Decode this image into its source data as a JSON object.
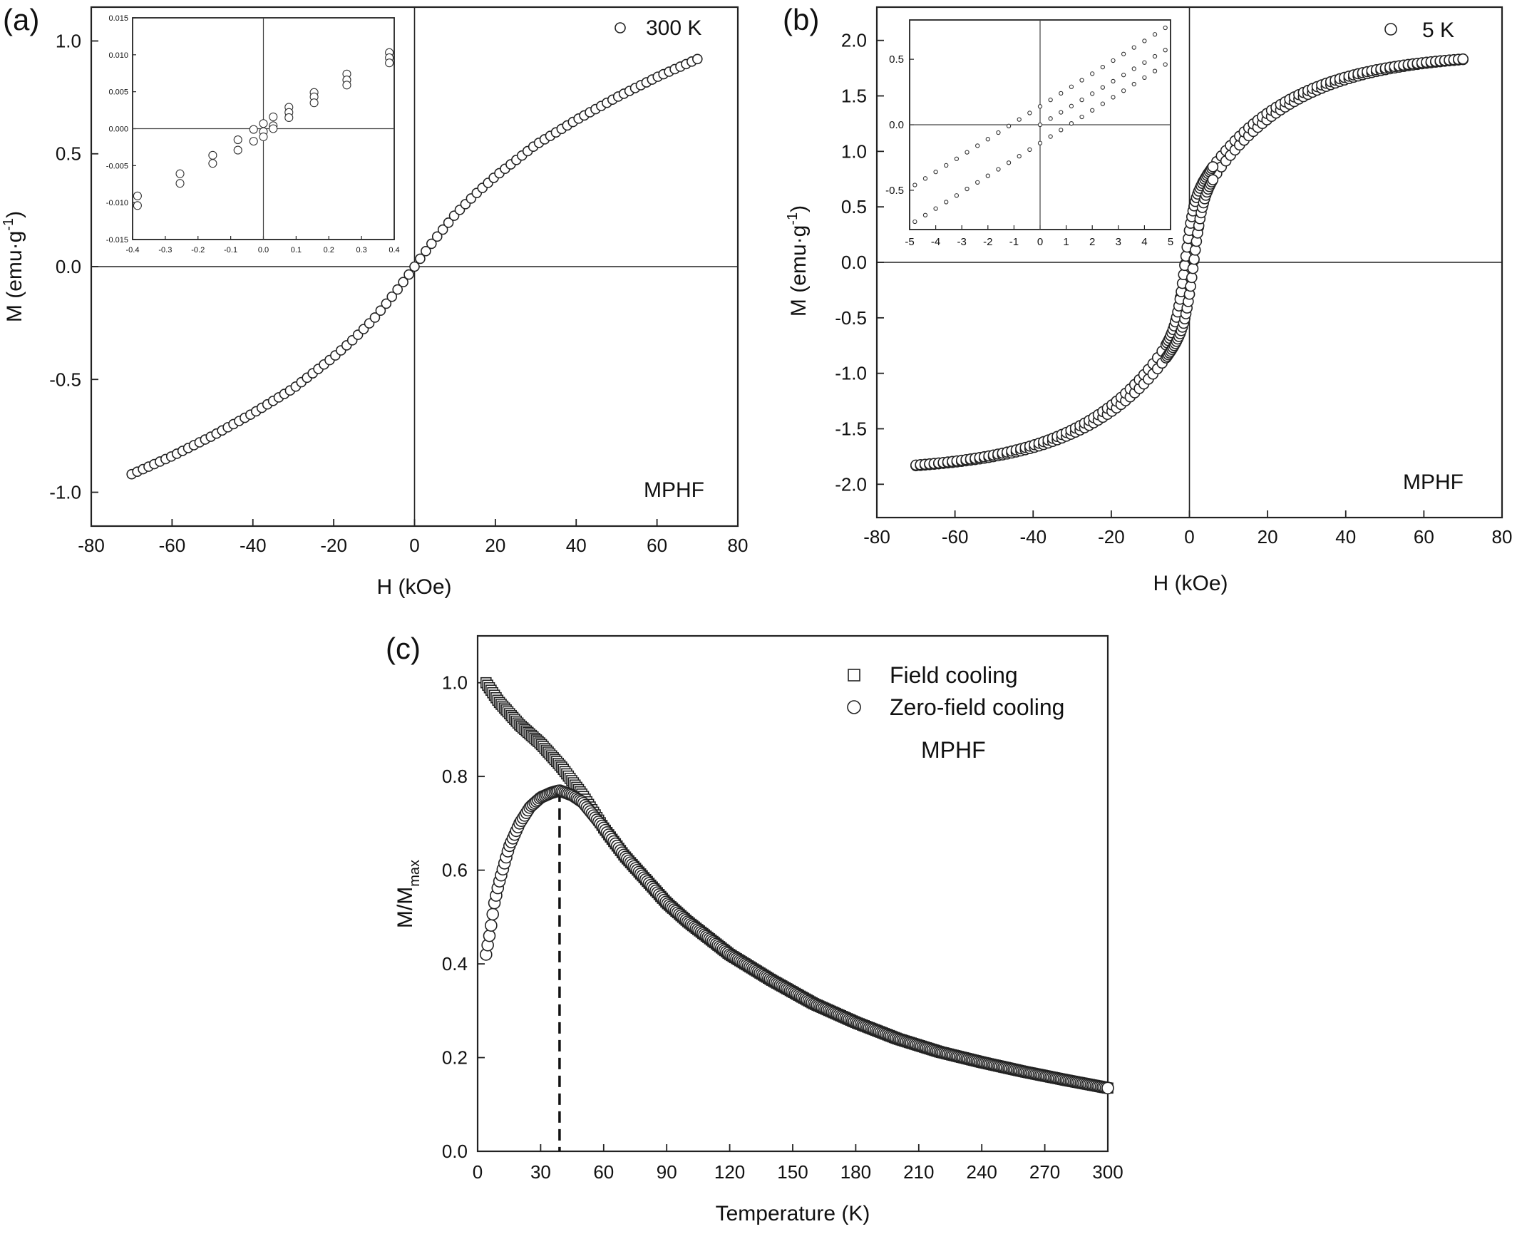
{
  "chart_data": [
    {
      "panel": "(a)",
      "type": "scatter",
      "xlabel": "H (kOe)",
      "ylabel": "M (emu·g",
      "ylabel_sup": "-1",
      "ylabel_end": ")",
      "xlim": [
        -80,
        80
      ],
      "ylim": [
        -1.15,
        1.15
      ],
      "xticks": [
        -80,
        -60,
        -40,
        -20,
        0,
        20,
        40,
        60,
        80
      ],
      "yticks": [
        -1.0,
        -0.5,
        0.0,
        0.5,
        1.0
      ],
      "legend": {
        "placement": "top-right",
        "entries": [
          {
            "marker": "circle",
            "label": "300 K"
          }
        ]
      },
      "annotation": "MPHF",
      "series": [
        {
          "name": "300 K",
          "points": [
            [
              -70,
              -0.92
            ],
            [
              -60,
              -0.84
            ],
            [
              -50,
              -0.75
            ],
            [
              -40,
              -0.65
            ],
            [
              -30,
              -0.54
            ],
            [
              -20,
              -0.4
            ],
            [
              -15,
              -0.32
            ],
            [
              -10,
              -0.23
            ],
            [
              -5,
              -0.12
            ],
            [
              -2,
              -0.05
            ],
            [
              0,
              0.0
            ],
            [
              2,
              0.05
            ],
            [
              5,
              0.12
            ],
            [
              10,
              0.23
            ],
            [
              15,
              0.32
            ],
            [
              20,
              0.4
            ],
            [
              30,
              0.54
            ],
            [
              40,
              0.65
            ],
            [
              50,
              0.75
            ],
            [
              60,
              0.84
            ],
            [
              70,
              0.92
            ]
          ]
        }
      ],
      "inset": {
        "xlim": [
          -0.4,
          0.4
        ],
        "ylim": [
          -0.015,
          0.015
        ],
        "xticks": [
          -0.4,
          -0.3,
          -0.2,
          -0.1,
          0.0,
          0.1,
          0.2,
          0.3,
          0.4
        ],
        "yticks": [
          -0.015,
          -0.01,
          -0.005,
          0.0,
          0.005,
          0.01,
          0.015
        ],
        "points": [
          [
            -0.385,
            -0.0091
          ],
          [
            -0.385,
            -0.0104
          ],
          [
            -0.255,
            -0.0061
          ],
          [
            -0.255,
            -0.0074
          ],
          [
            -0.155,
            -0.0036
          ],
          [
            -0.155,
            -0.0047
          ],
          [
            -0.078,
            -0.0015
          ],
          [
            -0.078,
            -0.0029
          ],
          [
            -0.03,
            -0.0001
          ],
          [
            -0.03,
            -0.0017
          ],
          [
            0.0,
            0.0007
          ],
          [
            0.0,
            -0.0004
          ],
          [
            0.0,
            -0.0011
          ],
          [
            0.03,
            0.0016
          ],
          [
            0.03,
            0.0004
          ],
          [
            0.03,
            0.0
          ],
          [
            0.078,
            0.0029
          ],
          [
            0.078,
            0.0022
          ],
          [
            0.078,
            0.0015
          ],
          [
            0.155,
            0.0049
          ],
          [
            0.155,
            0.0043
          ],
          [
            0.155,
            0.0035
          ],
          [
            0.255,
            0.0074
          ],
          [
            0.255,
            0.0066
          ],
          [
            0.255,
            0.0059
          ],
          [
            0.385,
            0.0103
          ],
          [
            0.385,
            0.0096
          ],
          [
            0.385,
            0.0089
          ]
        ]
      }
    },
    {
      "panel": "(b)",
      "type": "scatter",
      "xlabel": "H (kOe)",
      "ylabel": "M (emu·g",
      "ylabel_sup": "-1",
      "ylabel_end": ")",
      "xlim": [
        -80,
        80
      ],
      "ylim": [
        -2.3,
        2.3
      ],
      "xticks": [
        -80,
        -60,
        -40,
        -20,
        0,
        20,
        40,
        60,
        80
      ],
      "yticks": [
        -2.0,
        -1.5,
        -1.0,
        -0.5,
        0.0,
        0.5,
        1.0,
        1.5,
        2.0
      ],
      "legend": {
        "placement": "top-right",
        "entries": [
          {
            "marker": "circle",
            "label": "5 K"
          }
        ]
      },
      "annotation": "MPHF",
      "loop": {
        "Ms": 1.83,
        "Hc": 1.1,
        "Mr": 0.14,
        "hmax": 70
      },
      "inset": {
        "xlim": [
          -5,
          5
        ],
        "ylim": [
          -0.8,
          0.8
        ],
        "xticks": [
          -5,
          -4,
          -3,
          -2,
          -1,
          0,
          1,
          2,
          3,
          4,
          5
        ],
        "yticks": [
          -0.5,
          0.0,
          0.5
        ],
        "slope": 0.125,
        "offset": 0.14
      }
    },
    {
      "panel": "(c)",
      "type": "scatter",
      "xlabel": "Temperature (K)",
      "ylabel": "M/M",
      "ylabel_sub": "max",
      "xlim": [
        0,
        300
      ],
      "ylim": [
        0,
        1.1
      ],
      "xticks": [
        0,
        30,
        60,
        90,
        120,
        150,
        180,
        210,
        240,
        270,
        300
      ],
      "yticks": [
        0.0,
        0.2,
        0.4,
        0.6,
        0.8,
        1.0
      ],
      "legend": {
        "placement": "top-right",
        "entries": [
          {
            "marker": "square",
            "label": "Field cooling"
          },
          {
            "marker": "circle",
            "label": "Zero-field cooling"
          }
        ]
      },
      "annotation": "MPHF",
      "blocking_temperature_marker": 39,
      "series": [
        {
          "name": "Field cooling",
          "points": [
            [
              4,
              1.0
            ],
            [
              10,
              0.96
            ],
            [
              20,
              0.91
            ],
            [
              30,
              0.87
            ],
            [
              40,
              0.82
            ],
            [
              50,
              0.76
            ],
            [
              60,
              0.69
            ],
            [
              70,
              0.63
            ],
            [
              80,
              0.58
            ],
            [
              90,
              0.53
            ],
            [
              100,
              0.49
            ],
            [
              120,
              0.42
            ],
            [
              140,
              0.365
            ],
            [
              160,
              0.315
            ],
            [
              180,
              0.275
            ],
            [
              200,
              0.24
            ],
            [
              220,
              0.212
            ],
            [
              240,
              0.19
            ],
            [
              260,
              0.17
            ],
            [
              280,
              0.152
            ],
            [
              300,
              0.135
            ]
          ]
        },
        {
          "name": "Zero-field cooling",
          "points": [
            [
              4,
              0.42
            ],
            [
              6,
              0.47
            ],
            [
              8,
              0.53
            ],
            [
              10,
              0.57
            ],
            [
              15,
              0.65
            ],
            [
              20,
              0.7
            ],
            [
              25,
              0.735
            ],
            [
              30,
              0.755
            ],
            [
              35,
              0.765
            ],
            [
              39,
              0.77
            ],
            [
              45,
              0.76
            ],
            [
              50,
              0.745
            ],
            [
              60,
              0.69
            ],
            [
              70,
              0.63
            ],
            [
              80,
              0.58
            ],
            [
              90,
              0.53
            ],
            [
              100,
              0.49
            ],
            [
              120,
              0.42
            ],
            [
              140,
              0.365
            ],
            [
              160,
              0.315
            ],
            [
              180,
              0.275
            ],
            [
              200,
              0.24
            ],
            [
              220,
              0.212
            ],
            [
              240,
              0.19
            ],
            [
              260,
              0.17
            ],
            [
              280,
              0.152
            ],
            [
              300,
              0.135
            ]
          ]
        }
      ]
    }
  ]
}
